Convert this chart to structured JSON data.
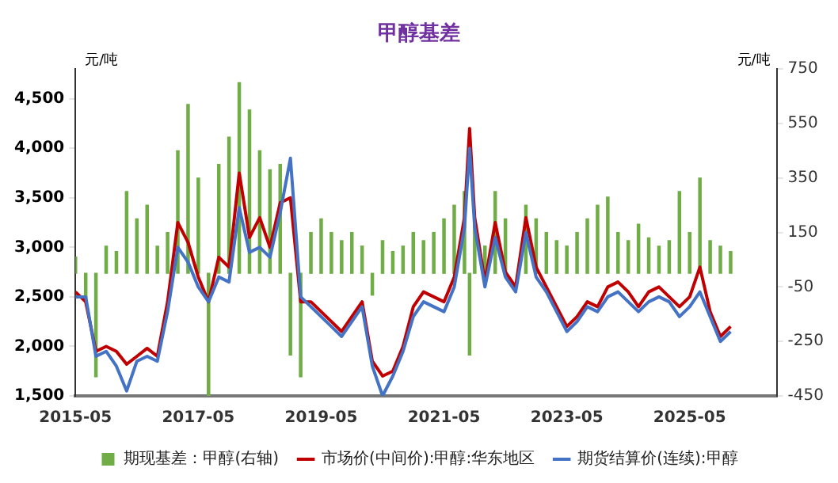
{
  "chart_data": {
    "type": "line",
    "title": "甲醇基差",
    "ylabel": "元/吨",
    "y2label": "元/吨",
    "xlim": [
      "2015-05",
      "2026-10"
    ],
    "xticks": [
      "2015-05",
      "2017-05",
      "2019-05",
      "2021-05",
      "2023-05",
      "2025-05"
    ],
    "ylim": [
      1500,
      4800
    ],
    "yticks": [
      {
        "value": 1500,
        "label": "1,500"
      },
      {
        "value": 2000,
        "label": "2,000"
      },
      {
        "value": 2500,
        "label": "2,500"
      },
      {
        "value": 3000,
        "label": "3,000"
      },
      {
        "value": 3500,
        "label": "3,500"
      },
      {
        "value": 4000,
        "label": "4,000"
      },
      {
        "value": 4500,
        "label": "4,500"
      }
    ],
    "y2lim": [
      -450,
      750
    ],
    "y2ticks": [
      -450,
      -250,
      -50,
      150,
      350,
      550,
      750
    ],
    "grid": false,
    "legend": "bottom",
    "marker": "none",
    "line_style": "solid",
    "x": [
      "2015-05",
      "2015-07",
      "2015-09",
      "2015-11",
      "2016-01",
      "2016-03",
      "2016-05",
      "2016-07",
      "2016-09",
      "2016-11",
      "2017-01",
      "2017-03",
      "2017-05",
      "2017-07",
      "2017-09",
      "2017-11",
      "2018-01",
      "2018-03",
      "2018-05",
      "2018-07",
      "2018-09",
      "2018-11",
      "2019-01",
      "2019-03",
      "2019-05",
      "2019-07",
      "2019-09",
      "2019-11",
      "2020-01",
      "2020-03",
      "2020-05",
      "2020-07",
      "2020-09",
      "2020-11",
      "2021-01",
      "2021-03",
      "2021-05",
      "2021-07",
      "2021-09",
      "2021-10",
      "2021-11",
      "2022-01",
      "2022-03",
      "2022-05",
      "2022-07",
      "2022-09",
      "2022-11",
      "2023-01",
      "2023-03",
      "2023-05",
      "2023-07",
      "2023-09",
      "2023-11",
      "2024-01",
      "2024-03",
      "2024-05",
      "2024-07",
      "2024-09",
      "2024-11",
      "2025-01",
      "2025-03",
      "2025-05",
      "2025-07",
      "2025-09",
      "2025-11",
      "2026-01"
    ],
    "series": [
      {
        "name": "期现基差：甲醇(右轴)",
        "type": "bar",
        "axis": "y2",
        "color": "#70ad47",
        "values": [
          60,
          -100,
          -380,
          100,
          80,
          300,
          200,
          250,
          100,
          150,
          450,
          620,
          350,
          -450,
          400,
          500,
          700,
          600,
          450,
          380,
          400,
          -300,
          -380,
          150,
          200,
          150,
          120,
          150,
          100,
          -80,
          120,
          80,
          100,
          150,
          120,
          150,
          200,
          250,
          300,
          -300,
          180,
          100,
          300,
          200,
          null,
          250,
          200,
          150,
          120,
          100,
          150,
          200,
          250,
          280,
          150,
          120,
          180,
          130,
          100,
          120,
          300,
          150,
          350,
          120,
          100,
          80
        ]
      },
      {
        "name": "市场价(中间价):甲醇:华东地区",
        "color": "#c00000",
        "values": [
          2550,
          2450,
          1950,
          2000,
          1950,
          1820,
          1900,
          1980,
          1900,
          2450,
          3250,
          3050,
          2700,
          2450,
          2900,
          2800,
          3750,
          3100,
          3300,
          3000,
          3450,
          3500,
          2450,
          2450,
          2350,
          2250,
          2150,
          2300,
          2450,
          1850,
          1700,
          1750,
          2000,
          2400,
          2550,
          2500,
          2450,
          2700,
          3300,
          4200,
          3300,
          2650,
          3250,
          2750,
          2600,
          3300,
          2800,
          2600,
          2400,
          2200,
          2300,
          2450,
          2400,
          2600,
          2650,
          2550,
          2400,
          2550,
          2600,
          2500,
          2400,
          2500,
          2800,
          2350,
          2100,
          2200
        ]
      },
      {
        "name": "期货结算价(连续):甲醇",
        "color": "#4472c4",
        "values": [
          2500,
          2500,
          1900,
          1950,
          1800,
          1550,
          1850,
          1900,
          1850,
          2350,
          3000,
          2850,
          2600,
          2450,
          2700,
          2650,
          3400,
          2950,
          3000,
          2900,
          3350,
          3900,
          2500,
          2400,
          2300,
          2200,
          2100,
          2250,
          2400,
          1800,
          1500,
          1700,
          1950,
          2300,
          2450,
          2400,
          2350,
          2600,
          3200,
          4000,
          3200,
          2600,
          3100,
          2700,
          2550,
          3150,
          2700,
          2550,
          2350,
          2150,
          2250,
          2400,
          2350,
          2500,
          2550,
          2450,
          2350,
          2450,
          2500,
          2450,
          2300,
          2400,
          2550,
          2300,
          2050,
          2150
        ]
      }
    ]
  }
}
